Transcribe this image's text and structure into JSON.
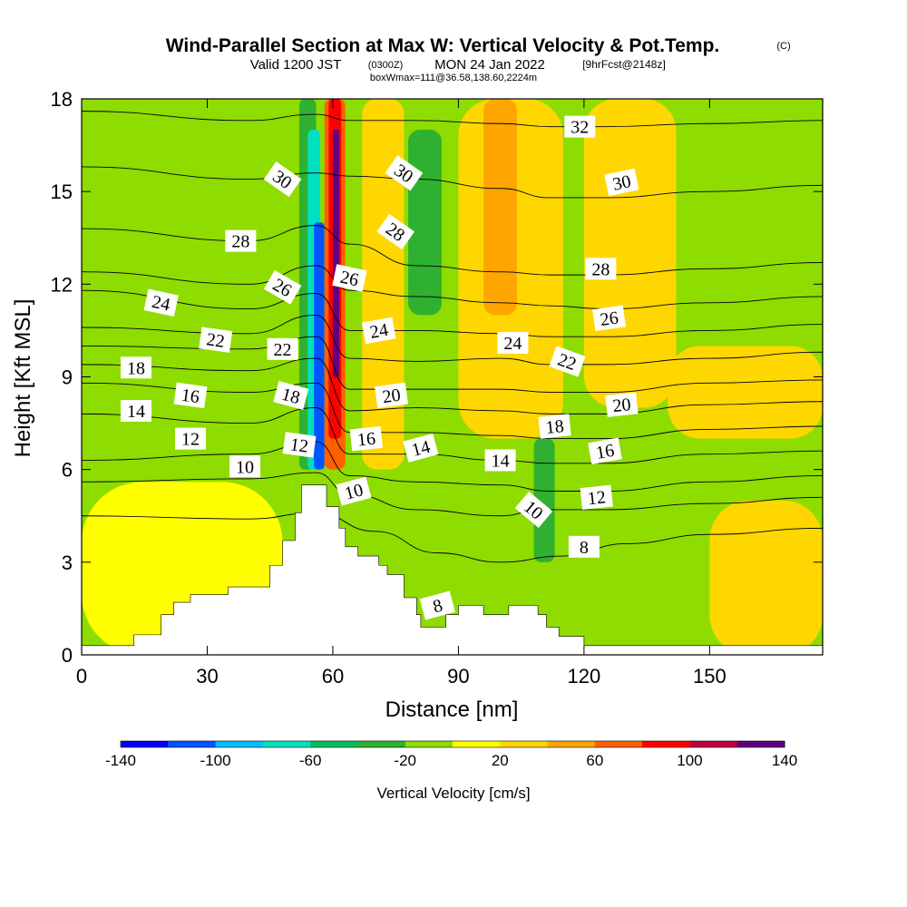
{
  "header": {
    "title": "Wind-Parallel Section at Max W: Vertical Velocity & Pot.Temp.",
    "copyright": "(C)",
    "subtitle_a": "Valid 1200 JST",
    "subtitle_b": "(0300Z)",
    "subtitle_c": "MON 24 Jan 2022",
    "subtitle_d": "[9hrFcst@2148z]",
    "subtitle_e": "boxWmax=111@36.58,138.60,2224m"
  },
  "colors": {
    "terrain": "#ffffff",
    "field_base": "#8fdc00",
    "palette": [
      "#0000ff",
      "#0055ff",
      "#00c0ff",
      "#00e0c0",
      "#00c060",
      "#30b030",
      "#8fdc00",
      "#ffff00",
      "#ffd700",
      "#ffa500",
      "#ff6000",
      "#ff0000",
      "#c00040",
      "#600080"
    ]
  },
  "chart_data": {
    "type": "contour",
    "xlabel": "Distance [nm]",
    "ylabel": "Height [Kft MSL]",
    "xlim": [
      0,
      177
    ],
    "ylim": [
      0,
      18
    ],
    "x_ticks": [
      0,
      30,
      60,
      90,
      120,
      150
    ],
    "y_ticks": [
      0,
      3,
      6,
      9,
      12,
      15,
      18
    ],
    "colorbar": {
      "title": "Vertical Velocity [cm/s]",
      "bounds": [
        -160,
        -140,
        -120,
        -100,
        -80,
        -60,
        -40,
        -20,
        0,
        20,
        40,
        60,
        80,
        100,
        120,
        140,
        160
      ],
      "tick_labels": [
        "-140",
        "-100",
        "-60",
        "-20",
        "20",
        "60",
        "100",
        "140"
      ],
      "tick_values": [
        -140,
        -100,
        -60,
        -20,
        20,
        60,
        100,
        140
      ]
    },
    "terrain_profile": [
      [
        0,
        0.3
      ],
      [
        12.5,
        0.3
      ],
      [
        12.5,
        0.65
      ],
      [
        19,
        0.65
      ],
      [
        19,
        1.3
      ],
      [
        22,
        1.3
      ],
      [
        22,
        1.7
      ],
      [
        26,
        1.7
      ],
      [
        26,
        1.95
      ],
      [
        35,
        1.95
      ],
      [
        35,
        2.2
      ],
      [
        45,
        2.2
      ],
      [
        45,
        2.9
      ],
      [
        48,
        2.9
      ],
      [
        48,
        3.7
      ],
      [
        51,
        3.7
      ],
      [
        51,
        4.6
      ],
      [
        52.5,
        4.6
      ],
      [
        52.5,
        5.5
      ],
      [
        58.5,
        5.5
      ],
      [
        58.5,
        4.8
      ],
      [
        61.5,
        4.8
      ],
      [
        61.5,
        4.1
      ],
      [
        63,
        4.1
      ],
      [
        63,
        3.5
      ],
      [
        66,
        3.5
      ],
      [
        66,
        3.2
      ],
      [
        71,
        3.2
      ],
      [
        71,
        2.9
      ],
      [
        73,
        2.9
      ],
      [
        73,
        2.6
      ],
      [
        77,
        2.6
      ],
      [
        77,
        1.85
      ],
      [
        80,
        1.85
      ],
      [
        80,
        1.3
      ],
      [
        81,
        1.3
      ],
      [
        81,
        0.9
      ],
      [
        87,
        0.9
      ],
      [
        87,
        1.3
      ],
      [
        90,
        1.3
      ],
      [
        90,
        1.6
      ],
      [
        96,
        1.6
      ],
      [
        96,
        1.3
      ],
      [
        102,
        1.3
      ],
      [
        102,
        1.6
      ],
      [
        109,
        1.6
      ],
      [
        109,
        1.3
      ],
      [
        111,
        1.3
      ],
      [
        111,
        0.9
      ],
      [
        114,
        0.9
      ],
      [
        114,
        0.6
      ],
      [
        120,
        0.6
      ],
      [
        120,
        0.3
      ],
      [
        177,
        0.3
      ]
    ],
    "theta_isotherms": [
      {
        "level": 8,
        "heights": [
          [
            0,
            4.5
          ],
          [
            40,
            4.4
          ],
          [
            56,
            4.6
          ],
          [
            70,
            4.0
          ],
          [
            85,
            3.3
          ],
          [
            100,
            3.0
          ],
          [
            115,
            3.2
          ],
          [
            130,
            3.6
          ],
          [
            150,
            3.9
          ],
          [
            177,
            4.1
          ]
        ]
      },
      {
        "level": 10,
        "heights": [
          [
            0,
            5.6
          ],
          [
            40,
            5.7
          ],
          [
            56,
            5.9
          ],
          [
            64,
            5.2
          ],
          [
            80,
            4.7
          ],
          [
            100,
            4.5
          ],
          [
            110,
            4.7
          ],
          [
            125,
            4.7
          ],
          [
            150,
            4.9
          ],
          [
            177,
            5.1
          ]
        ]
      },
      {
        "level": 12,
        "heights": [
          [
            0,
            6.3
          ],
          [
            40,
            6.5
          ],
          [
            56,
            6.9
          ],
          [
            64,
            5.8
          ],
          [
            80,
            5.6
          ],
          [
            100,
            5.5
          ],
          [
            112,
            5.3
          ],
          [
            125,
            5.3
          ],
          [
            150,
            5.6
          ],
          [
            177,
            5.8
          ]
        ]
      },
      {
        "level": 14,
        "heights": [
          [
            0,
            7.8
          ],
          [
            40,
            7.5
          ],
          [
            56,
            8.0
          ],
          [
            64,
            6.5
          ],
          [
            80,
            6.5
          ],
          [
            100,
            6.3
          ],
          [
            112,
            6.2
          ],
          [
            125,
            6.2
          ],
          [
            150,
            6.5
          ],
          [
            177,
            6.6
          ]
        ]
      },
      {
        "level": 16,
        "heights": [
          [
            0,
            8.8
          ],
          [
            40,
            8.5
          ],
          [
            56,
            8.8
          ],
          [
            64,
            7.2
          ],
          [
            80,
            7.2
          ],
          [
            100,
            7.1
          ],
          [
            112,
            7.0
          ],
          [
            125,
            7.0
          ],
          [
            150,
            7.3
          ],
          [
            177,
            7.4
          ]
        ]
      },
      {
        "level": 18,
        "heights": [
          [
            0,
            9.4
          ],
          [
            40,
            9.2
          ],
          [
            56,
            9.6
          ],
          [
            64,
            7.9
          ],
          [
            80,
            8.0
          ],
          [
            100,
            7.9
          ],
          [
            112,
            7.8
          ],
          [
            125,
            7.8
          ],
          [
            150,
            8.1
          ],
          [
            177,
            8.2
          ]
        ]
      },
      {
        "level": 20,
        "heights": [
          [
            0,
            10.0
          ],
          [
            40,
            9.9
          ],
          [
            56,
            10.3
          ],
          [
            64,
            8.6
          ],
          [
            80,
            8.6
          ],
          [
            100,
            8.6
          ],
          [
            112,
            8.5
          ],
          [
            125,
            8.5
          ],
          [
            150,
            8.8
          ],
          [
            177,
            8.9
          ]
        ]
      },
      {
        "level": 22,
        "heights": [
          [
            0,
            10.6
          ],
          [
            40,
            10.4
          ],
          [
            56,
            11.0
          ],
          [
            64,
            9.6
          ],
          [
            80,
            9.5
          ],
          [
            100,
            9.6
          ],
          [
            112,
            9.4
          ],
          [
            125,
            9.4
          ],
          [
            150,
            9.6
          ],
          [
            177,
            9.8
          ]
        ]
      },
      {
        "level": 24,
        "heights": [
          [
            0,
            11.8
          ],
          [
            40,
            11.2
          ],
          [
            56,
            11.7
          ],
          [
            64,
            10.5
          ],
          [
            80,
            10.5
          ],
          [
            100,
            10.4
          ],
          [
            112,
            10.3
          ],
          [
            125,
            10.3
          ],
          [
            150,
            10.5
          ],
          [
            177,
            10.7
          ]
        ]
      },
      {
        "level": 26,
        "heights": [
          [
            0,
            12.4
          ],
          [
            40,
            12.0
          ],
          [
            56,
            12.6
          ],
          [
            64,
            11.8
          ],
          [
            80,
            11.6
          ],
          [
            100,
            11.4
          ],
          [
            112,
            11.3
          ],
          [
            125,
            11.2
          ],
          [
            150,
            11.4
          ],
          [
            177,
            11.6
          ]
        ]
      },
      {
        "level": 28,
        "heights": [
          [
            0,
            13.8
          ],
          [
            40,
            13.4
          ],
          [
            56,
            13.9
          ],
          [
            64,
            13.3
          ],
          [
            80,
            12.6
          ],
          [
            100,
            12.4
          ],
          [
            112,
            12.3
          ],
          [
            125,
            12.3
          ],
          [
            150,
            12.5
          ],
          [
            177,
            12.7
          ]
        ]
      },
      {
        "level": 30,
        "heights": [
          [
            0,
            15.8
          ],
          [
            40,
            15.4
          ],
          [
            56,
            15.6
          ],
          [
            64,
            15.5
          ],
          [
            80,
            15.4
          ],
          [
            100,
            15.1
          ],
          [
            112,
            14.8
          ],
          [
            125,
            14.8
          ],
          [
            150,
            15.0
          ],
          [
            177,
            15.2
          ]
        ]
      },
      {
        "level": 32,
        "heights": [
          [
            0,
            17.6
          ],
          [
            40,
            17.3
          ],
          [
            56,
            17.5
          ],
          [
            64,
            17.3
          ],
          [
            80,
            17.3
          ],
          [
            100,
            17.2
          ],
          [
            112,
            17.1
          ],
          [
            125,
            17.1
          ],
          [
            150,
            17.2
          ],
          [
            177,
            17.3
          ]
        ]
      }
    ],
    "theta_labels": [
      {
        "text": "32",
        "x": 119,
        "y": 17.1,
        "angle": 0
      },
      {
        "text": "30",
        "x": 48,
        "y": 15.4,
        "angle": 35
      },
      {
        "text": "30",
        "x": 77,
        "y": 15.6,
        "angle": 35
      },
      {
        "text": "30",
        "x": 129,
        "y": 15.3,
        "angle": -12
      },
      {
        "text": "28",
        "x": 38,
        "y": 13.4,
        "angle": 0
      },
      {
        "text": "28",
        "x": 75,
        "y": 13.7,
        "angle": 35
      },
      {
        "text": "28",
        "x": 124,
        "y": 12.5,
        "angle": 0
      },
      {
        "text": "26",
        "x": 48,
        "y": 11.9,
        "angle": 30
      },
      {
        "text": "26",
        "x": 64,
        "y": 12.2,
        "angle": 12
      },
      {
        "text": "26",
        "x": 126,
        "y": 10.9,
        "angle": -8
      },
      {
        "text": "24",
        "x": 19,
        "y": 11.4,
        "angle": 12
      },
      {
        "text": "24",
        "x": 71,
        "y": 10.5,
        "angle": -10
      },
      {
        "text": "24",
        "x": 103,
        "y": 10.1,
        "angle": 0
      },
      {
        "text": "22",
        "x": 32,
        "y": 10.2,
        "angle": 8
      },
      {
        "text": "22",
        "x": 48,
        "y": 9.9,
        "angle": 0
      },
      {
        "text": "22",
        "x": 116,
        "y": 9.5,
        "angle": 20
      },
      {
        "text": "20",
        "x": 74,
        "y": 8.4,
        "angle": -8
      },
      {
        "text": "20",
        "x": 129,
        "y": 8.1,
        "angle": -6
      },
      {
        "text": "18",
        "x": 13,
        "y": 9.3,
        "angle": 0
      },
      {
        "text": "18",
        "x": 50,
        "y": 8.4,
        "angle": 15
      },
      {
        "text": "18",
        "x": 113,
        "y": 7.4,
        "angle": -6
      },
      {
        "text": "16",
        "x": 26,
        "y": 8.4,
        "angle": 8
      },
      {
        "text": "16",
        "x": 68,
        "y": 7.0,
        "angle": -6
      },
      {
        "text": "16",
        "x": 125,
        "y": 6.6,
        "angle": -10
      },
      {
        "text": "14",
        "x": 13,
        "y": 7.9,
        "angle": 0
      },
      {
        "text": "14",
        "x": 81,
        "y": 6.7,
        "angle": -15
      },
      {
        "text": "14",
        "x": 100,
        "y": 6.3,
        "angle": 0
      },
      {
        "text": "12",
        "x": 26,
        "y": 7.0,
        "angle": 0
      },
      {
        "text": "12",
        "x": 52,
        "y": 6.8,
        "angle": 8
      },
      {
        "text": "12",
        "x": 123,
        "y": 5.1,
        "angle": -6
      },
      {
        "text": "10",
        "x": 39,
        "y": 6.1,
        "angle": 0
      },
      {
        "text": "10",
        "x": 65,
        "y": 5.3,
        "angle": -15
      },
      {
        "text": "10",
        "x": 108,
        "y": 4.7,
        "angle": 40
      },
      {
        "text": "8",
        "x": 120,
        "y": 3.5,
        "angle": 0
      },
      {
        "text": "8",
        "x": 85,
        "y": 1.6,
        "angle": -15
      }
    ],
    "w_regions": [
      {
        "w": 10,
        "x0": 0,
        "x1": 177,
        "y0": 0,
        "y1": 18
      },
      {
        "w": 10,
        "x0": 0,
        "x1": 48,
        "y0": 0,
        "y1": 5.6
      },
      {
        "w": 30,
        "x0": 67,
        "x1": 77,
        "y0": 6,
        "y1": 18
      },
      {
        "w": 30,
        "x0": 90,
        "x1": 115,
        "y0": 7,
        "y1": 18
      },
      {
        "w": 30,
        "x0": 120,
        "x1": 142,
        "y0": 8,
        "y1": 18
      },
      {
        "w": 50,
        "x0": 96,
        "x1": 104,
        "y0": 11,
        "y1": 18
      },
      {
        "w": -10,
        "x0": 77,
        "x1": 88,
        "y0": 9,
        "y1": 18
      },
      {
        "w": -30,
        "x0": 78,
        "x1": 86,
        "y0": 11,
        "y1": 17
      },
      {
        "w": -30,
        "x0": 52,
        "x1": 56,
        "y0": 6,
        "y1": 18
      },
      {
        "w": -80,
        "x0": 54,
        "x1": 57,
        "y0": 6,
        "y1": 17
      },
      {
        "w": -140,
        "x0": 55.5,
        "x1": 58,
        "y0": 6,
        "y1": 14
      },
      {
        "w": 60,
        "x0": 58,
        "x1": 63,
        "y0": 6,
        "y1": 18
      },
      {
        "w": 100,
        "x0": 59,
        "x1": 62,
        "y0": 7,
        "y1": 18
      },
      {
        "w": 140,
        "x0": 60,
        "x1": 61.5,
        "y0": 9,
        "y1": 17
      },
      {
        "w": 30,
        "x0": 150,
        "x1": 177,
        "y0": 0,
        "y1": 5
      },
      {
        "w": 30,
        "x0": 140,
        "x1": 177,
        "y0": 7,
        "y1": 10
      },
      {
        "w": -30,
        "x0": 108,
        "x1": 113,
        "y0": 3,
        "y1": 7
      }
    ]
  }
}
